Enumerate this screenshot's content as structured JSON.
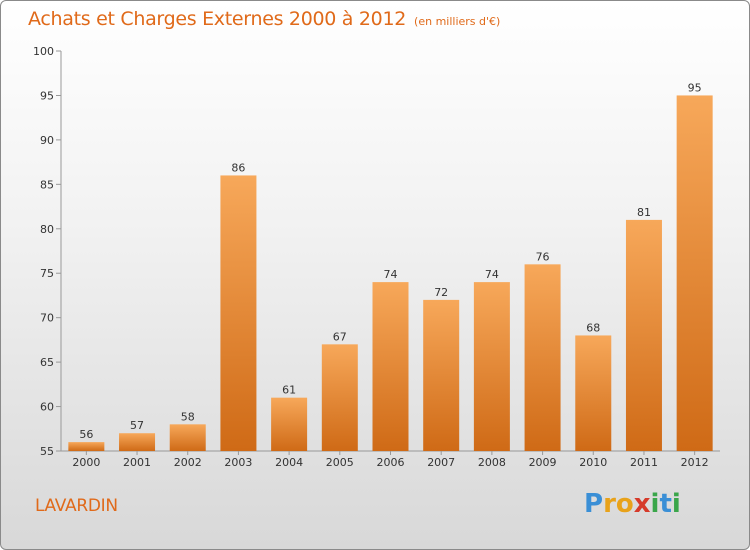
{
  "header": {
    "title": "Achats et Charges Externes 2000 à 2012",
    "subtitle": "(en milliers d'€)"
  },
  "place_name": "LAVARDIN",
  "logo": {
    "text": "Proxiti",
    "letters": [
      {
        "ch": "P",
        "color": "#3a8fd6"
      },
      {
        "ch": "r",
        "color": "#e8a21a"
      },
      {
        "ch": "o",
        "color": "#e8a21a"
      },
      {
        "ch": "x",
        "color": "#d63a2a"
      },
      {
        "ch": "i",
        "color": "#3aa64a"
      },
      {
        "ch": "t",
        "color": "#3a8fd6"
      },
      {
        "ch": "i",
        "color": "#3aa64a"
      }
    ]
  },
  "colors": {
    "accent": "#e06a1a",
    "bar_top": "#f7a85a",
    "bar_bottom": "#cf6a16"
  },
  "chart_data": {
    "type": "bar",
    "title": "Achats et Charges Externes 2000 à 2012",
    "subtitle": "(en milliers d'€)",
    "categories": [
      "2000",
      "2001",
      "2002",
      "2003",
      "2004",
      "2005",
      "2006",
      "2007",
      "2008",
      "2009",
      "2010",
      "2011",
      "2012"
    ],
    "values": [
      56,
      57,
      58,
      86,
      61,
      67,
      74,
      72,
      74,
      76,
      68,
      81,
      95
    ],
    "ylim": [
      55,
      100
    ],
    "yticks": [
      55,
      60,
      65,
      70,
      75,
      80,
      85,
      90,
      95,
      100
    ],
    "grid": false,
    "legend": "none",
    "data_labels": true
  }
}
